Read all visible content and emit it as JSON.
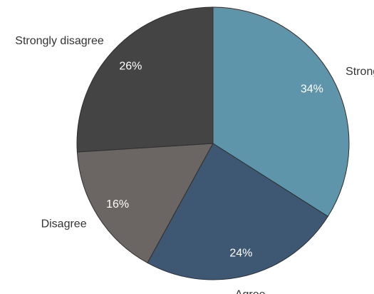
{
  "chart_data": {
    "type": "pie",
    "start": "top",
    "direction": "clockwise",
    "slices": [
      {
        "label": "Strongly agree",
        "value": 34,
        "display": "34%",
        "color": "#5e95aa"
      },
      {
        "label": "Agree",
        "value": 24,
        "display": "24%",
        "color": "#3e5873"
      },
      {
        "label": "Disagree",
        "value": 16,
        "display": "16%",
        "color": "#6b6663"
      },
      {
        "label": "Strongly disagree",
        "value": 26,
        "display": "26%",
        "color": "#444444"
      }
    ]
  }
}
